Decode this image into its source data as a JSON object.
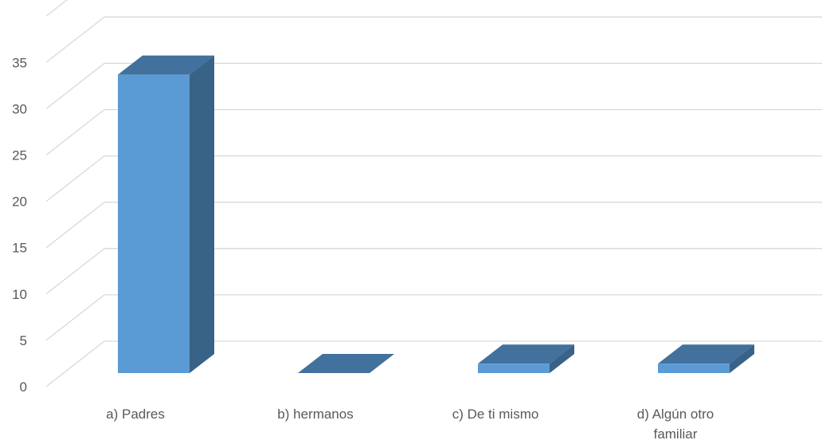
{
  "chart_data": {
    "type": "bar",
    "title": "",
    "xlabel": "",
    "ylabel": "",
    "categories": [
      "a) Padres",
      "b) hermanos",
      "c) De ti mismo",
      "d) Algún otro familiar"
    ],
    "category_lines": [
      [
        "a) Padres"
      ],
      [
        "b) hermanos"
      ],
      [
        "c) De ti mismo"
      ],
      [
        "d) Algún otro",
        "familiar"
      ]
    ],
    "values": [
      32,
      0,
      1,
      1
    ],
    "ylim": [
      0,
      40
    ],
    "yticks": [
      "0",
      "5",
      "10",
      "15",
      "20",
      "25",
      "30",
      "35"
    ],
    "ytick_values": [
      0,
      5,
      10,
      15,
      20,
      25,
      30,
      35
    ],
    "grid": true,
    "style": "3d-column",
    "colors": {
      "front": "#5B9BD5",
      "top": "#41719C",
      "side": "#386286",
      "grid": "#D9D9D9",
      "text": "#595959"
    }
  }
}
